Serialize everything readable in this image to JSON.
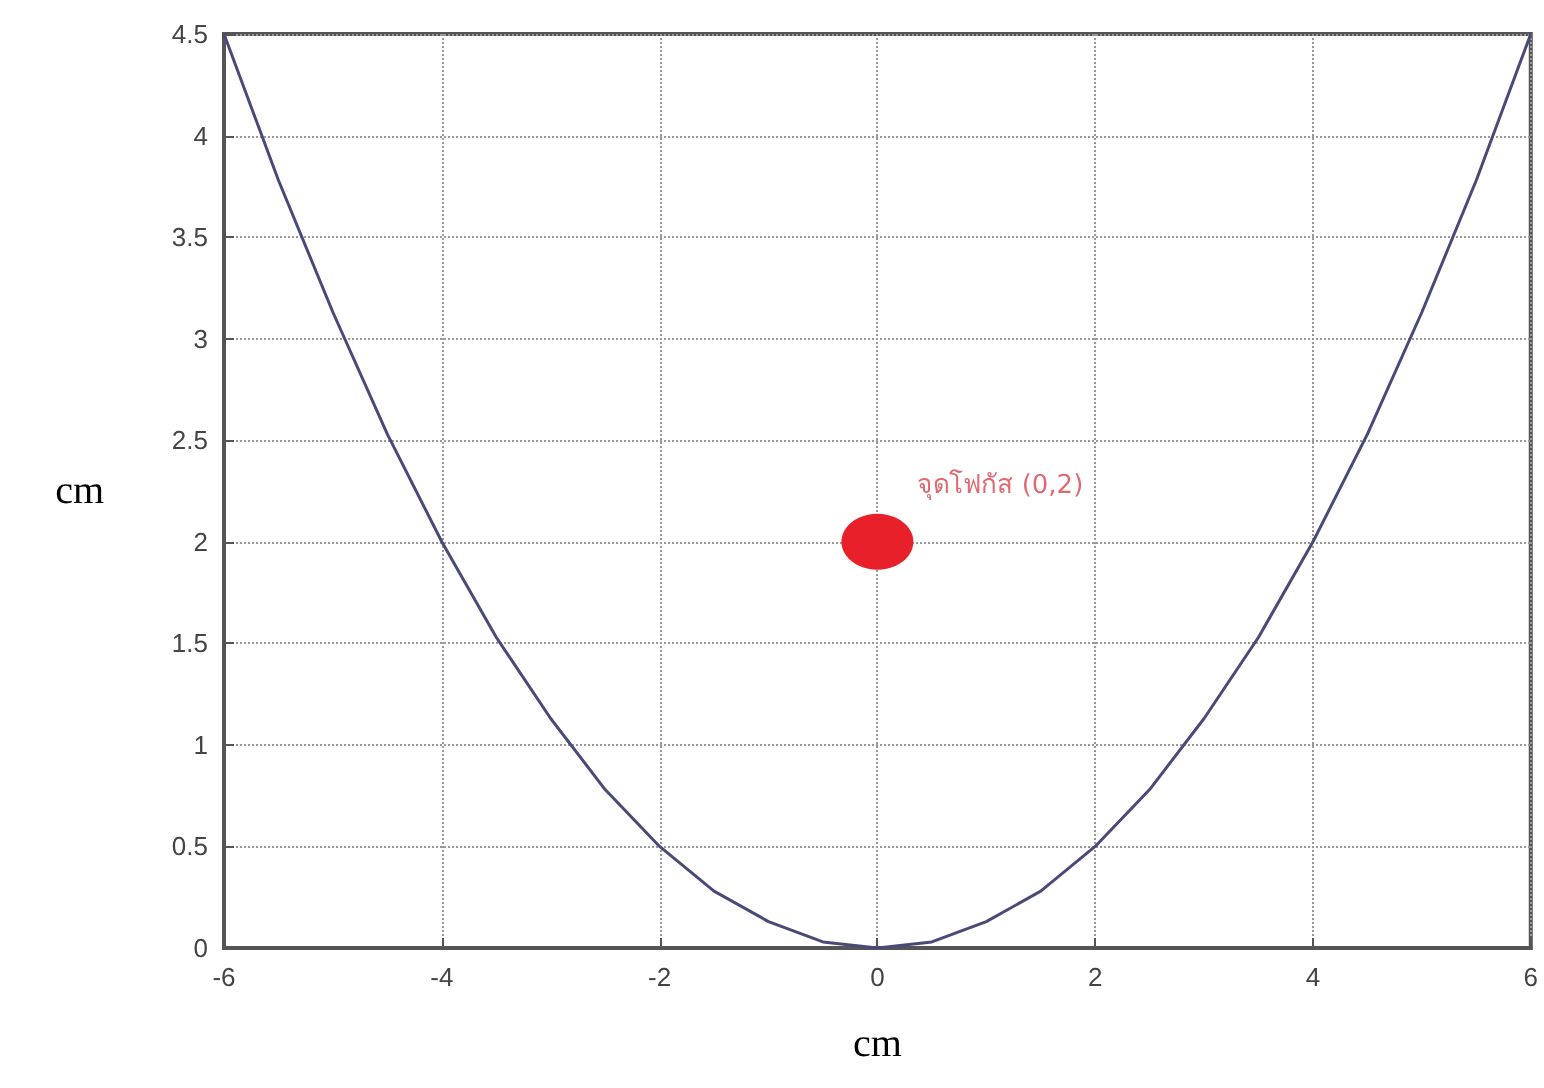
{
  "chart_data": {
    "type": "line",
    "xlabel": "cm",
    "ylabel": "cm",
    "series": [
      {
        "color": "#4a4a78",
        "marker": "none",
        "x": [
          -6,
          -5.5,
          -5,
          -4.5,
          -4,
          -3.5,
          -3,
          -2.5,
          -2,
          -1.5,
          -1,
          -0.5,
          0,
          0.5,
          1,
          1.5,
          2,
          2.5,
          3,
          3.5,
          4,
          4.5,
          5,
          5.5,
          6
        ],
        "values": [
          4.5,
          3.78,
          3.13,
          2.53,
          2,
          1.53,
          1.13,
          0.78,
          0.5,
          0.28,
          0.13,
          0.03,
          0,
          0.03,
          0.13,
          0.28,
          0.5,
          0.78,
          1.13,
          1.53,
          2,
          2.53,
          3.13,
          3.78,
          4.5
        ]
      },
      {
        "type": "scatter",
        "marker": "circle",
        "color": "#e8202a",
        "x": [
          0
        ],
        "values": [
          2
        ]
      }
    ],
    "annotations": [
      {
        "text": "จุดโฟกัส (0,2)",
        "x": 0,
        "y": 2
      }
    ],
    "xlim": [
      -6,
      6
    ],
    "xticks": [
      -6,
      -4,
      -2,
      0,
      2,
      4,
      6
    ],
    "ylim": [
      0,
      4.5
    ],
    "yticks": [
      0,
      0.5,
      1,
      1.5,
      2,
      2.5,
      3,
      3.5,
      4,
      4.5
    ],
    "grid": true,
    "line_style": "solid"
  }
}
